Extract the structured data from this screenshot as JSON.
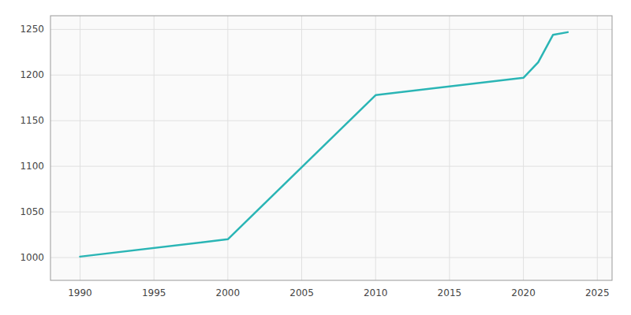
{
  "chart_data": {
    "type": "line",
    "x": [
      1990,
      2000,
      2010,
      2020,
      2021,
      2022,
      2023
    ],
    "values": [
      1001,
      1020,
      1178,
      1197,
      1214,
      1244,
      1247
    ],
    "color": "#2ab5b5",
    "xlim": [
      1988,
      2026
    ],
    "ylim": [
      975,
      1265
    ],
    "xticks": [
      1990,
      1995,
      2000,
      2005,
      2010,
      2015,
      2020,
      2025
    ],
    "yticks": [
      1000,
      1050,
      1100,
      1150,
      1200,
      1250
    ],
    "grid": true
  }
}
